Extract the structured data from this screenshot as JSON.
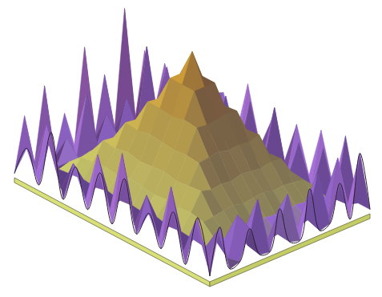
{
  "chart_data": {
    "type": "surface",
    "zlim": [
      0,
      100
    ],
    "tick_labels": false,
    "z": [
      [
        3,
        40,
        4,
        55,
        2,
        30,
        5,
        70,
        3,
        45,
        4,
        85,
        2,
        50,
        6,
        35,
        3
      ],
      [
        25,
        5,
        35,
        3,
        20,
        4,
        45,
        6,
        25,
        5,
        30,
        4,
        60,
        3,
        40,
        5,
        20
      ],
      [
        4,
        30,
        9,
        11,
        10,
        12,
        10,
        11,
        12,
        10,
        11,
        9,
        10,
        12,
        9,
        45,
        3
      ],
      [
        45,
        3,
        10,
        19,
        20,
        21,
        20,
        22,
        21,
        20,
        22,
        19,
        20,
        21,
        11,
        3,
        25
      ],
      [
        3,
        25,
        11,
        20,
        32,
        31,
        33,
        32,
        34,
        31,
        33,
        32,
        31,
        19,
        10,
        4,
        30
      ],
      [
        30,
        4,
        10,
        21,
        31,
        46,
        45,
        47,
        46,
        45,
        47,
        46,
        33,
        20,
        12,
        35,
        4
      ],
      [
        5,
        40,
        12,
        20,
        33,
        45,
        62,
        61,
        63,
        62,
        61,
        45,
        32,
        21,
        10,
        5,
        45
      ],
      [
        35,
        6,
        10,
        22,
        31,
        47,
        62,
        80,
        80,
        80,
        63,
        46,
        33,
        20,
        11,
        40,
        6
      ],
      [
        4,
        50,
        11,
        21,
        32,
        46,
        61,
        80,
        100,
        80,
        62,
        47,
        31,
        22,
        10,
        4,
        30
      ],
      [
        40,
        5,
        10,
        20,
        33,
        45,
        63,
        80,
        80,
        80,
        61,
        45,
        32,
        21,
        12,
        45,
        5
      ],
      [
        6,
        30,
        12,
        21,
        31,
        46,
        62,
        61,
        62,
        63,
        62,
        46,
        33,
        20,
        10,
        3,
        35
      ],
      [
        25,
        4,
        10,
        20,
        32,
        45,
        46,
        47,
        45,
        46,
        45,
        47,
        31,
        21,
        11,
        30,
        4
      ],
      [
        5,
        45,
        11,
        21,
        33,
        31,
        32,
        31,
        33,
        32,
        31,
        33,
        32,
        20,
        10,
        4,
        40
      ],
      [
        35,
        4,
        10,
        19,
        20,
        21,
        22,
        20,
        21,
        22,
        20,
        21,
        20,
        19,
        12,
        35,
        5
      ],
      [
        3,
        30,
        9,
        11,
        10,
        12,
        11,
        10,
        12,
        11,
        10,
        12,
        11,
        10,
        9,
        4,
        45
      ],
      [
        40,
        4,
        25,
        3,
        30,
        6,
        35,
        4,
        5,
        30,
        4,
        6,
        35,
        3,
        40,
        5,
        3
      ],
      [
        4,
        35,
        3,
        5,
        25,
        4,
        3,
        30,
        4,
        2,
        35,
        3,
        5,
        30,
        2,
        45,
        3
      ]
    ]
  }
}
